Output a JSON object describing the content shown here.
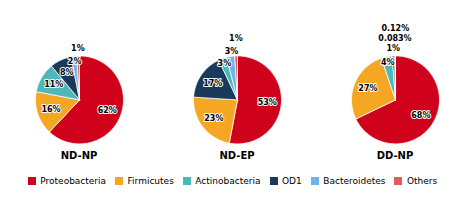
{
  "chart_data": [
    {
      "type": "pie",
      "title": "ND-NP",
      "categories": [
        "Proteobacteria",
        "Firmicutes",
        "Actinobacteria",
        "OD1",
        "Bacteroidetes",
        "Others"
      ],
      "values": [
        62,
        16,
        11,
        8,
        2,
        1
      ],
      "value_labels": [
        "62%",
        "16%",
        "11%",
        "8%",
        "2%",
        "1%"
      ],
      "colors": [
        "#d0021b",
        "#f5a623",
        "#4db8b8",
        "#1a3a5c",
        "#6ab4e8",
        "#e05c5c"
      ],
      "data_labels": true,
      "legend": "bottom"
    },
    {
      "type": "pie",
      "title": "ND-EP",
      "categories": [
        "Proteobacteria",
        "Firmicutes",
        "OD1",
        "Actinobacteria",
        "Bacteroidetes",
        "Others"
      ],
      "values": [
        53,
        23,
        17,
        3,
        3,
        1
      ],
      "value_labels": [
        "53%",
        "23%",
        "17%",
        "3%",
        "3%",
        "1%"
      ],
      "colors": [
        "#d0021b",
        "#f5a623",
        "#1a3a5c",
        "#4db8b8",
        "#6ab4e8",
        "#e05c5c"
      ],
      "data_labels": true
    },
    {
      "type": "pie",
      "title": "DD-NP",
      "categories": [
        "Proteobacteria",
        "Firmicutes",
        "Actinobacteria",
        "OD1",
        "Bacteroidetes",
        "Others"
      ],
      "values": [
        68,
        27,
        4,
        1,
        0.083,
        0.12
      ],
      "value_labels": [
        "68%",
        "27%",
        "4%",
        "1%",
        "0.083%",
        "0.12%"
      ],
      "colors": [
        "#d0021b",
        "#f5a623",
        "#4db8b8",
        "#1a3a5c",
        "#6ab4e8",
        "#e05c5c"
      ],
      "data_labels": true
    }
  ]
}
